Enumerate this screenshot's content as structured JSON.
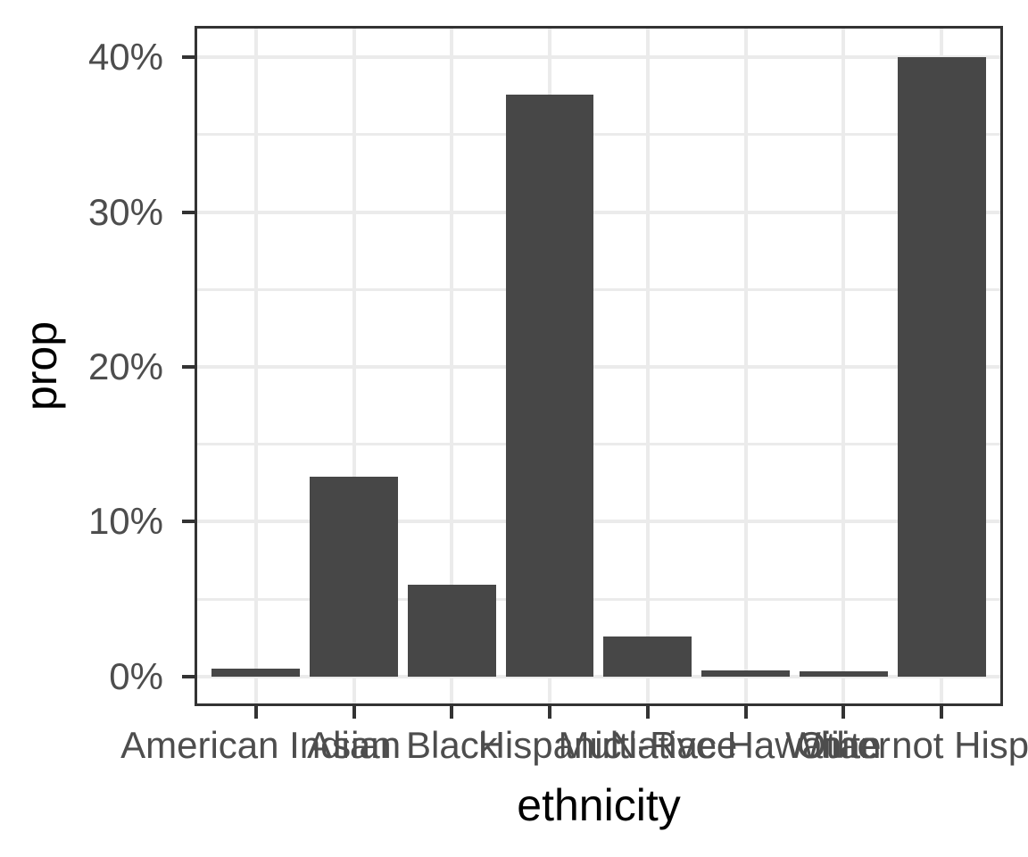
{
  "chart_data": {
    "type": "bar",
    "title": "",
    "xlabel": "ethnicity",
    "ylabel": "prop",
    "categories": [
      "American Indian",
      "Asian",
      "Black",
      "Hispanic",
      "Multi-Race",
      "Native Hawaiian",
      "Other",
      "White not Hispanic"
    ],
    "values": [
      0.5,
      12.9,
      5.9,
      37.6,
      2.6,
      0.4,
      0.3,
      40.0
    ],
    "value_unit": "percent",
    "y_ticks": [
      {
        "label": "0%",
        "value": 0
      },
      {
        "label": "10%",
        "value": 10
      },
      {
        "label": "20%",
        "value": 20
      },
      {
        "label": "30%",
        "value": 30
      },
      {
        "label": "40%",
        "value": 40
      }
    ],
    "ylim": [
      -1.9,
      42.1
    ],
    "grid": "major-and-minor-horizontal, major-vertical-at-category-centers",
    "legend": "none",
    "bar_relative_width": 0.9,
    "colors": {
      "bar_fill": "#474747",
      "gridline": "#EBEBEB",
      "panel_border": "#333333",
      "axis_text": "#4D4D4D",
      "axis_title": "#000000",
      "background": "#FFFFFF"
    }
  }
}
